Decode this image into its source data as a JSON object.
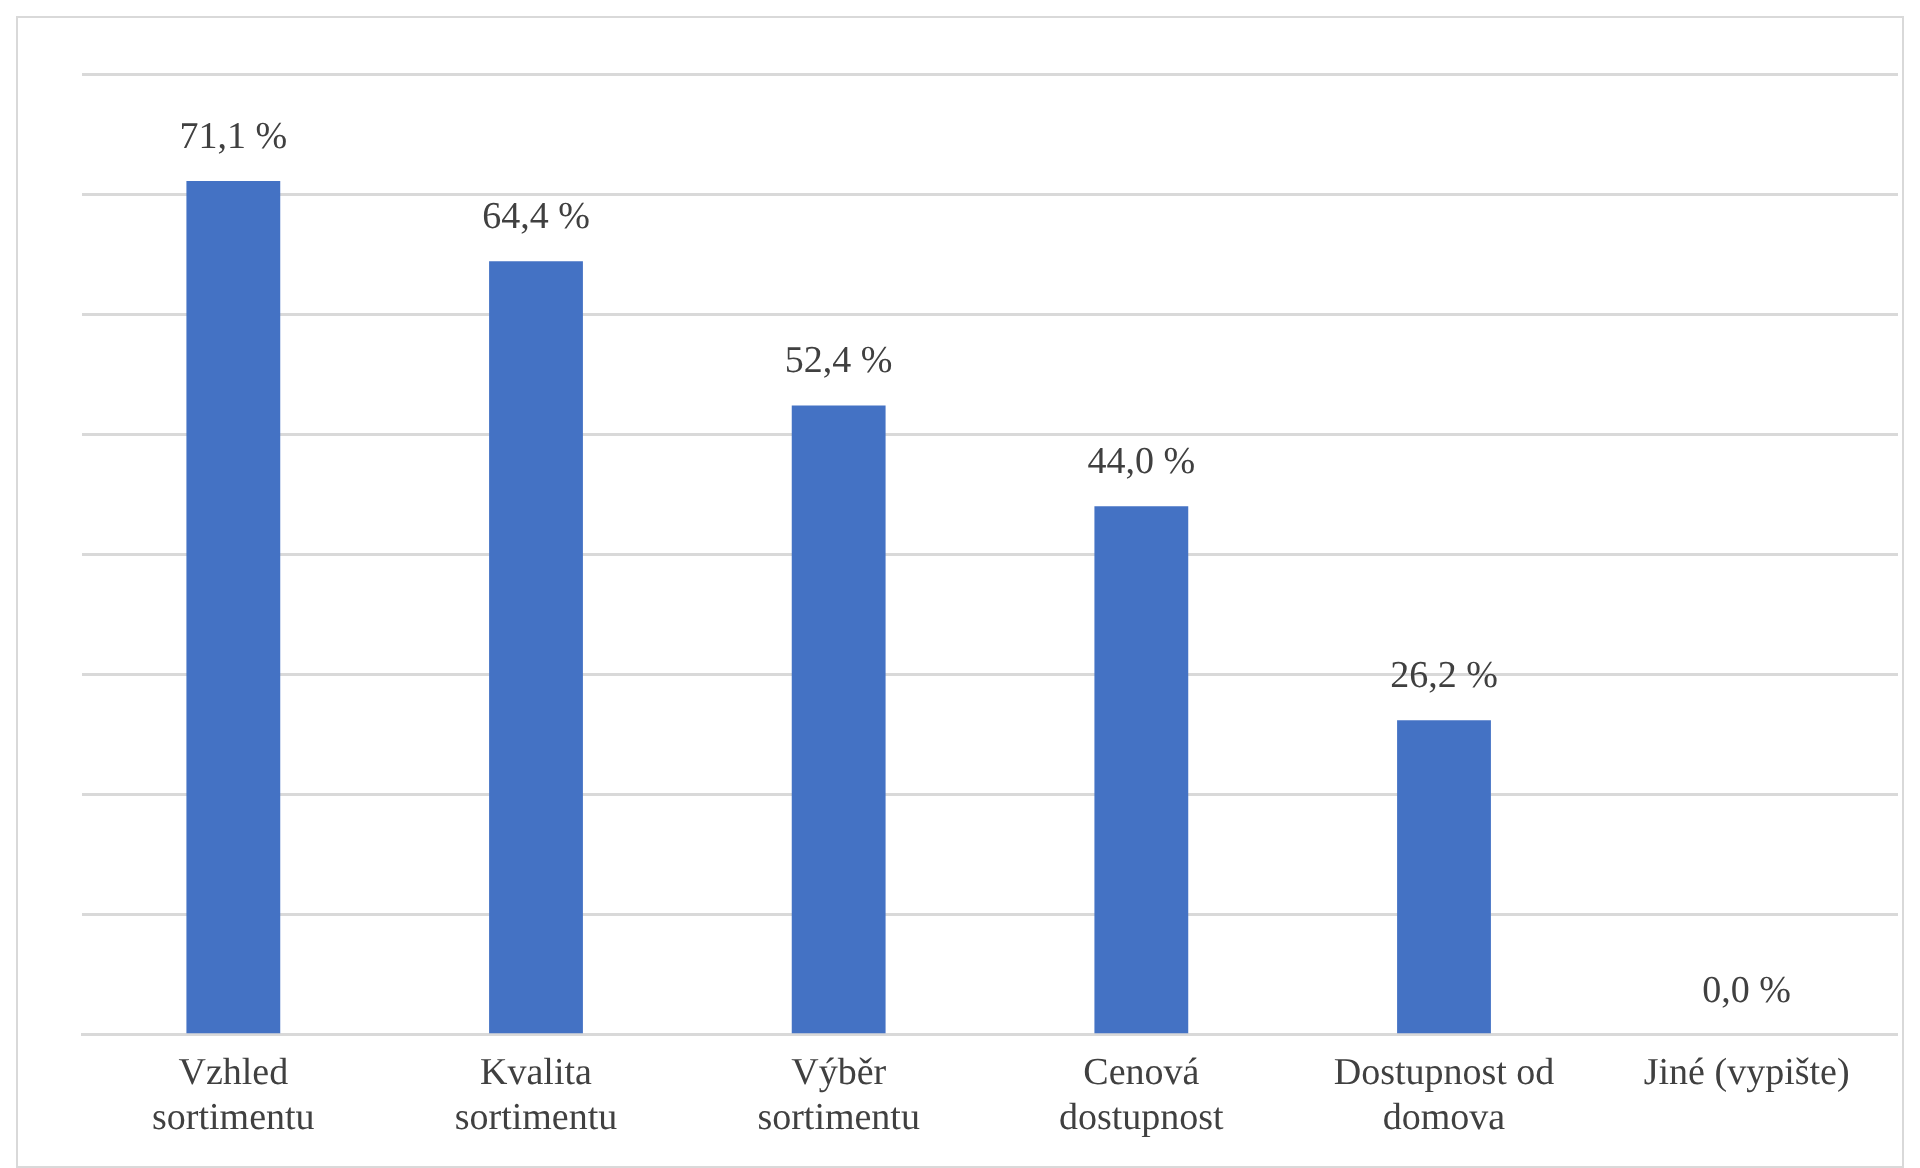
{
  "chart_data": {
    "type": "bar",
    "categories": [
      "Vzhled sortimentu",
      "Kvalita sortimentu",
      "Výběr sortimentu",
      "Cenová dostupnost",
      "Dostupnost od domova",
      "Jiné (vypište)"
    ],
    "values": [
      71.1,
      64.4,
      52.4,
      44.0,
      26.2,
      0.0
    ],
    "value_labels": [
      "71,1 %",
      "64,4 %",
      "52,4 %",
      "44,0 %",
      "26,2 %",
      "0,0 %"
    ],
    "color": "#4472c4",
    "ylim": [
      0,
      80
    ],
    "yticks": [
      {
        "value": 0,
        "label": null
      },
      {
        "value": 10,
        "label": null
      },
      {
        "value": 20,
        "label": null
      },
      {
        "value": 30,
        "label": null
      },
      {
        "value": 40,
        "label": null
      },
      {
        "value": 50,
        "label": null
      },
      {
        "value": 60,
        "label": null
      },
      {
        "value": 70,
        "label": null
      },
      {
        "value": 80,
        "label": null
      }
    ],
    "grid": "y",
    "legend": false,
    "tick_labels": "x"
  }
}
